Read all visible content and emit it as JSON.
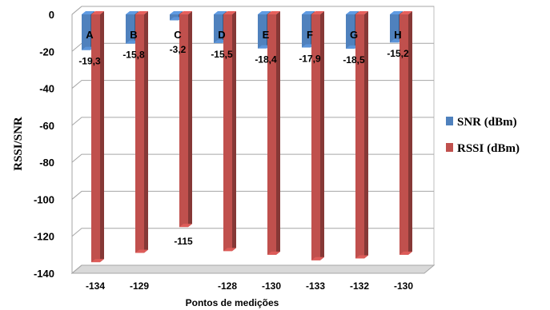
{
  "chart_data": {
    "type": "bar",
    "categories": [
      "A",
      "B",
      "C",
      "D",
      "E",
      "F",
      "G",
      "H"
    ],
    "series": [
      {
        "name": "SNR (dBm)",
        "values": [
          -19.3,
          -15.8,
          -3.2,
          -15.5,
          -18.4,
          -17.9,
          -18.5,
          -15.2
        ],
        "labels": [
          "-19,3",
          "-15,8",
          "-3,2",
          "-15,5",
          "-18,4",
          "-17,9",
          "-18,5",
          "-15,2"
        ],
        "color": "#4f81bd"
      },
      {
        "name": "RSSI (dBm)",
        "values": [
          -134,
          -129,
          -115,
          -128,
          -130,
          -133,
          -132,
          -130
        ],
        "labels": [
          "-134",
          "-129",
          "-115",
          "-128",
          "-130",
          "-133",
          "-132",
          "-130"
        ],
        "color": "#c0504d"
      }
    ],
    "xlabel": "Pontos de medições",
    "ylabel": "RSSI/SNR",
    "ylim": [
      -140,
      0
    ],
    "yticks": [
      0,
      -20,
      -40,
      -60,
      -80,
      -100,
      -120,
      -140
    ],
    "grid": true,
    "legend": "right"
  }
}
